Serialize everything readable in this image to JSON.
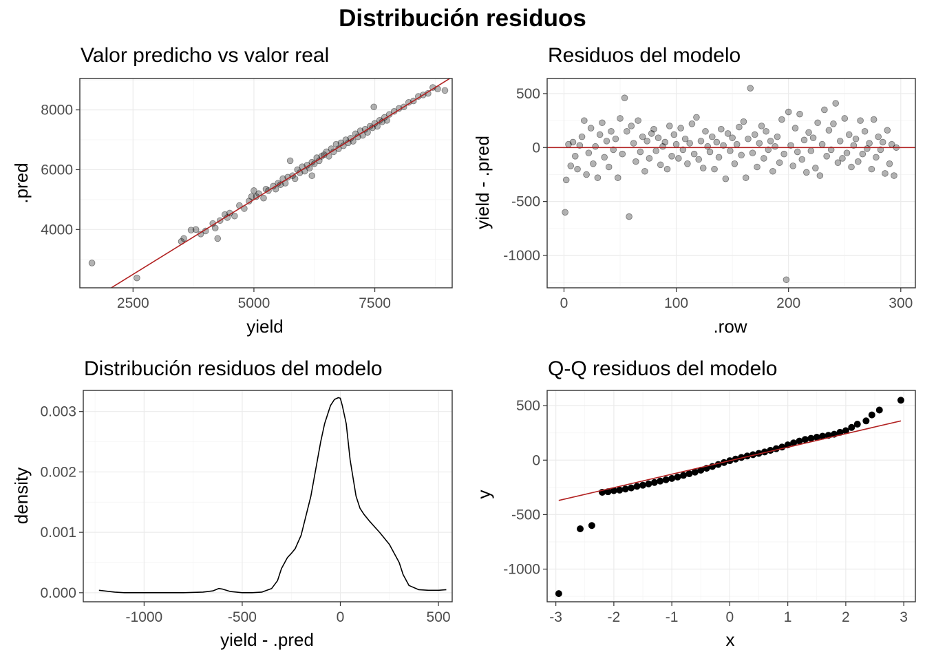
{
  "title": "Distribución residuos",
  "colors": {
    "reference_line": "#b22222",
    "points": "#000000",
    "grid": "#ebebeb",
    "frame": "#333333",
    "tick_text": "#4d4d4d"
  },
  "chart_data": [
    {
      "type": "scatter",
      "title": "Valor predicho vs valor real",
      "xlabel": "yield",
      "ylabel": ".pred",
      "xlim": [
        1400,
        9100
      ],
      "ylim": [
        2050,
        9050
      ],
      "x_ticks": [
        2500,
        5000,
        7500
      ],
      "x_tick_labels": [
        "2500",
        "5000",
        "7500"
      ],
      "y_ticks": [
        4000,
        6000,
        8000
      ],
      "y_tick_labels": [
        "4000",
        "6000",
        "8000"
      ],
      "grid": true,
      "point_alpha": 0.3,
      "reference_line": {
        "slope": 1,
        "intercept": 0
      },
      "points": [
        [
          1650,
          2880
        ],
        [
          2580,
          2380
        ],
        [
          3500,
          3600
        ],
        [
          3550,
          3700
        ],
        [
          3700,
          3980
        ],
        [
          3800,
          4000
        ],
        [
          3900,
          3850
        ],
        [
          4000,
          3950
        ],
        [
          4150,
          4200
        ],
        [
          4200,
          4050
        ],
        [
          4250,
          3700
        ],
        [
          4300,
          4300
        ],
        [
          4400,
          4500
        ],
        [
          4450,
          4400
        ],
        [
          4500,
          4550
        ],
        [
          4600,
          4450
        ],
        [
          4700,
          4800
        ],
        [
          4800,
          4700
        ],
        [
          4900,
          4950
        ],
        [
          4950,
          5100
        ],
        [
          5050,
          5100
        ],
        [
          5100,
          5200
        ],
        [
          5200,
          5050
        ],
        [
          5250,
          5350
        ],
        [
          5300,
          5300
        ],
        [
          5400,
          5450
        ],
        [
          5450,
          5350
        ],
        [
          5500,
          5550
        ],
        [
          5550,
          5500
        ],
        [
          5600,
          5700
        ],
        [
          5650,
          5550
        ],
        [
          5700,
          5750
        ],
        [
          5750,
          6300
        ],
        [
          5800,
          5800
        ],
        [
          5850,
          5700
        ],
        [
          5900,
          6000
        ],
        [
          5950,
          5900
        ],
        [
          6000,
          6100
        ],
        [
          6050,
          5950
        ],
        [
          6100,
          6150
        ],
        [
          6150,
          6050
        ],
        [
          6200,
          6250
        ],
        [
          6250,
          6200
        ],
        [
          6300,
          6400
        ],
        [
          6350,
          6300
        ],
        [
          6400,
          6450
        ],
        [
          6450,
          6500
        ],
        [
          6500,
          6600
        ],
        [
          6550,
          6450
        ],
        [
          6600,
          6700
        ],
        [
          6650,
          6600
        ],
        [
          6700,
          6850
        ],
        [
          6750,
          6700
        ],
        [
          6800,
          6900
        ],
        [
          6850,
          6800
        ],
        [
          6900,
          7000
        ],
        [
          6950,
          6900
        ],
        [
          7000,
          7050
        ],
        [
          7050,
          6950
        ],
        [
          7100,
          7200
        ],
        [
          7150,
          7100
        ],
        [
          7200,
          7300
        ],
        [
          7250,
          7150
        ],
        [
          7300,
          7350
        ],
        [
          7350,
          7250
        ],
        [
          7400,
          7450
        ],
        [
          7450,
          7400
        ],
        [
          7500,
          7550
        ],
        [
          7550,
          7450
        ],
        [
          7600,
          7650
        ],
        [
          7650,
          7600
        ],
        [
          7700,
          7750
        ],
        [
          7750,
          7650
        ],
        [
          7800,
          7850
        ],
        [
          7900,
          7950
        ],
        [
          8000,
          8050
        ],
        [
          8100,
          8100
        ],
        [
          8200,
          8250
        ],
        [
          8300,
          8300
        ],
        [
          8400,
          8450
        ],
        [
          8500,
          8500
        ],
        [
          8600,
          8550
        ],
        [
          8700,
          8750
        ],
        [
          8800,
          8700
        ],
        [
          8950,
          8650
        ],
        [
          7480,
          8100
        ],
        [
          6200,
          5800
        ],
        [
          5000,
          5300
        ]
      ]
    },
    {
      "type": "scatter",
      "title": "Residuos del modelo",
      "xlabel": ".row",
      "ylabel": "yield - .pred",
      "xlim": [
        -15,
        313
      ],
      "ylim": [
        -1300,
        640
      ],
      "x_ticks": [
        0,
        100,
        200,
        300
      ],
      "x_tick_labels": [
        "0",
        "100",
        "200",
        "300"
      ],
      "y_ticks": [
        -1000,
        -500,
        0,
        500
      ],
      "y_tick_labels": [
        "-1000",
        "-500",
        "0",
        "500"
      ],
      "grid": true,
      "point_alpha": 0.3,
      "reference_line": {
        "slope": 0,
        "intercept": 0
      },
      "points": [
        [
          1,
          -600
        ],
        [
          2,
          -300
        ],
        [
          4,
          30
        ],
        [
          6,
          -170
        ],
        [
          8,
          50
        ],
        [
          10,
          -80
        ],
        [
          12,
          -200
        ],
        [
          14,
          20
        ],
        [
          16,
          100
        ],
        [
          18,
          250
        ],
        [
          20,
          -250
        ],
        [
          22,
          -50
        ],
        [
          24,
          180
        ],
        [
          26,
          -150
        ],
        [
          28,
          10
        ],
        [
          30,
          -280
        ],
        [
          32,
          120
        ],
        [
          34,
          230
        ],
        [
          36,
          -90
        ],
        [
          38,
          60
        ],
        [
          40,
          -180
        ],
        [
          42,
          150
        ],
        [
          44,
          -20
        ],
        [
          46,
          80
        ],
        [
          48,
          -280
        ],
        [
          50,
          270
        ],
        [
          52,
          -60
        ],
        [
          54,
          460
        ],
        [
          56,
          150
        ],
        [
          58,
          -640
        ],
        [
          60,
          200
        ],
        [
          62,
          40
        ],
        [
          64,
          -130
        ],
        [
          66,
          250
        ],
        [
          68,
          -40
        ],
        [
          70,
          100
        ],
        [
          72,
          -220
        ],
        [
          74,
          60
        ],
        [
          76,
          -100
        ],
        [
          78,
          130
        ],
        [
          80,
          170
        ],
        [
          82,
          -30
        ],
        [
          84,
          90
        ],
        [
          86,
          -160
        ],
        [
          88,
          10
        ],
        [
          90,
          50
        ],
        [
          92,
          -200
        ],
        [
          94,
          200
        ],
        [
          96,
          -80
        ],
        [
          98,
          120
        ],
        [
          100,
          30
        ],
        [
          102,
          -100
        ],
        [
          104,
          180
        ],
        [
          106,
          -20
        ],
        [
          108,
          80
        ],
        [
          110,
          -150
        ],
        [
          112,
          40
        ],
        [
          114,
          220
        ],
        [
          116,
          -60
        ],
        [
          118,
          280
        ],
        [
          120,
          -110
        ],
        [
          122,
          60
        ],
        [
          124,
          -190
        ],
        [
          126,
          150
        ],
        [
          128,
          10
        ],
        [
          130,
          -40
        ],
        [
          132,
          100
        ],
        [
          134,
          -200
        ],
        [
          136,
          50
        ],
        [
          138,
          -90
        ],
        [
          140,
          170
        ],
        [
          142,
          20
        ],
        [
          144,
          -290
        ],
        [
          146,
          130
        ],
        [
          148,
          -30
        ],
        [
          150,
          90
        ],
        [
          152,
          -150
        ],
        [
          154,
          30
        ],
        [
          156,
          190
        ],
        [
          158,
          -70
        ],
        [
          160,
          240
        ],
        [
          162,
          -280
        ],
        [
          164,
          80
        ],
        [
          166,
          550
        ],
        [
          168,
          -50
        ],
        [
          170,
          120
        ],
        [
          172,
          -180
        ],
        [
          174,
          40
        ],
        [
          176,
          200
        ],
        [
          178,
          -100
        ],
        [
          180,
          150
        ],
        [
          182,
          -20
        ],
        [
          184,
          60
        ],
        [
          186,
          -220
        ],
        [
          188,
          10
        ],
        [
          190,
          100
        ],
        [
          192,
          -140
        ],
        [
          194,
          260
        ],
        [
          196,
          -60
        ],
        [
          198,
          -1225
        ],
        [
          200,
          330
        ],
        [
          202,
          20
        ],
        [
          204,
          -170
        ],
        [
          206,
          180
        ],
        [
          208,
          -40
        ],
        [
          210,
          310
        ],
        [
          212,
          -110
        ],
        [
          214,
          70
        ],
        [
          216,
          -230
        ],
        [
          218,
          140
        ],
        [
          220,
          -30
        ],
        [
          222,
          90
        ],
        [
          224,
          -190
        ],
        [
          226,
          230
        ],
        [
          228,
          -260
        ],
        [
          230,
          30
        ],
        [
          232,
          350
        ],
        [
          234,
          -80
        ],
        [
          236,
          160
        ],
        [
          238,
          -20
        ],
        [
          240,
          220
        ],
        [
          242,
          410
        ],
        [
          244,
          -140
        ],
        [
          246,
          60
        ],
        [
          248,
          -100
        ],
        [
          250,
          270
        ],
        [
          252,
          -50
        ],
        [
          254,
          120
        ],
        [
          256,
          -180
        ],
        [
          258,
          20
        ],
        [
          260,
          80
        ],
        [
          262,
          -130
        ],
        [
          264,
          250
        ],
        [
          266,
          -60
        ],
        [
          268,
          150
        ],
        [
          270,
          -10
        ],
        [
          272,
          40
        ],
        [
          274,
          -200
        ],
        [
          276,
          260
        ],
        [
          278,
          -90
        ],
        [
          280,
          100
        ],
        [
          282,
          -20
        ],
        [
          284,
          50
        ],
        [
          286,
          -240
        ],
        [
          288,
          160
        ],
        [
          290,
          -150
        ],
        [
          292,
          30
        ],
        [
          294,
          -260
        ],
        [
          296,
          0
        ]
      ]
    },
    {
      "type": "line",
      "title": "Distribución residuos del modelo",
      "xlabel": "yield - .pred",
      "ylabel": "density",
      "xlim": [
        -1310,
        570
      ],
      "ylim": [
        -0.00015,
        0.00335
      ],
      "x_ticks": [
        -1000,
        -500,
        0,
        500
      ],
      "x_tick_labels": [
        "-1000",
        "-500",
        "0",
        "500"
      ],
      "y_ticks": [
        0,
        0.001,
        0.002,
        0.003
      ],
      "y_tick_labels": [
        "0.000",
        "0.001",
        "0.002",
        "0.003"
      ],
      "grid": true,
      "series": [
        {
          "x": [
            -1230,
            -1150,
            -1100,
            -1000,
            -900,
            -800,
            -700,
            -650,
            -620,
            -600,
            -560,
            -500,
            -450,
            -400,
            -350,
            -320,
            -300,
            -270,
            -250,
            -230,
            -200,
            -150,
            -100,
            -80,
            -50,
            -30,
            -10,
            0,
            10,
            30,
            50,
            80,
            100,
            120,
            150,
            200,
            250,
            300,
            320,
            350,
            400,
            450,
            500,
            540
          ],
          "y": [
            4e-05,
            1e-05,
            0.0,
            0.0,
            0.0,
            0.0,
            1e-05,
            3e-05,
            7e-05,
            6e-05,
            2e-05,
            0.0,
            0.0,
            1e-05,
            7e-05,
            0.0002,
            0.0004,
            0.00058,
            0.00065,
            0.00073,
            0.00095,
            0.0016,
            0.0025,
            0.0028,
            0.0031,
            0.0032,
            0.00323,
            0.00322,
            0.0031,
            0.0028,
            0.0022,
            0.0016,
            0.0014,
            0.0013,
            0.00118,
            0.001,
            0.0008,
            0.0005,
            0.0003,
            0.00012,
            5e-05,
            4e-05,
            4e-05,
            5e-05
          ]
        }
      ]
    },
    {
      "type": "scatter",
      "title": "Q-Q residuos del modelo",
      "xlabel": "x",
      "ylabel": "y",
      "xlim": [
        -3.15,
        3.2
      ],
      "ylim": [
        -1300,
        640
      ],
      "x_ticks": [
        -3,
        -2,
        -1,
        0,
        1,
        2,
        3
      ],
      "x_tick_labels": [
        "-3",
        "-2",
        "-1",
        "0",
        "1",
        "2",
        "3"
      ],
      "y_ticks": [
        -1000,
        -500,
        0,
        500
      ],
      "y_tick_labels": [
        "-1000",
        "-500",
        "0",
        "500"
      ],
      "grid": true,
      "point_alpha": 1,
      "reference_line": {
        "x": [
          -2.95,
          2.95
        ],
        "y": [
          -370,
          360
        ]
      },
      "points": [
        [
          -2.95,
          -1225
        ],
        [
          -2.58,
          -630
        ],
        [
          -2.38,
          -600
        ],
        [
          -2.2,
          -295
        ],
        [
          -2.1,
          -290
        ],
        [
          -2.0,
          -280
        ],
        [
          -1.9,
          -275
        ],
        [
          -1.8,
          -265
        ],
        [
          -1.7,
          -255
        ],
        [
          -1.6,
          -240
        ],
        [
          -1.5,
          -230
        ],
        [
          -1.4,
          -218
        ],
        [
          -1.3,
          -205
        ],
        [
          -1.2,
          -192
        ],
        [
          -1.1,
          -180
        ],
        [
          -1.0,
          -168
        ],
        [
          -0.9,
          -155
        ],
        [
          -0.8,
          -140
        ],
        [
          -0.7,
          -125
        ],
        [
          -0.6,
          -110
        ],
        [
          -0.5,
          -92
        ],
        [
          -0.4,
          -75
        ],
        [
          -0.3,
          -58
        ],
        [
          -0.2,
          -40
        ],
        [
          -0.1,
          -22
        ],
        [
          0.0,
          -5
        ],
        [
          0.1,
          10
        ],
        [
          0.2,
          25
        ],
        [
          0.3,
          38
        ],
        [
          0.4,
          50
        ],
        [
          0.5,
          62
        ],
        [
          0.6,
          75
        ],
        [
          0.7,
          90
        ],
        [
          0.8,
          105
        ],
        [
          0.9,
          120
        ],
        [
          1.0,
          140
        ],
        [
          1.1,
          158
        ],
        [
          1.2,
          175
        ],
        [
          1.3,
          190
        ],
        [
          1.4,
          200
        ],
        [
          1.5,
          210
        ],
        [
          1.6,
          220
        ],
        [
          1.7,
          228
        ],
        [
          1.8,
          238
        ],
        [
          1.9,
          255
        ],
        [
          2.0,
          270
        ],
        [
          2.1,
          300
        ],
        [
          2.2,
          330
        ],
        [
          2.35,
          360
        ],
        [
          2.45,
          415
        ],
        [
          2.58,
          460
        ],
        [
          2.95,
          550
        ]
      ]
    }
  ]
}
